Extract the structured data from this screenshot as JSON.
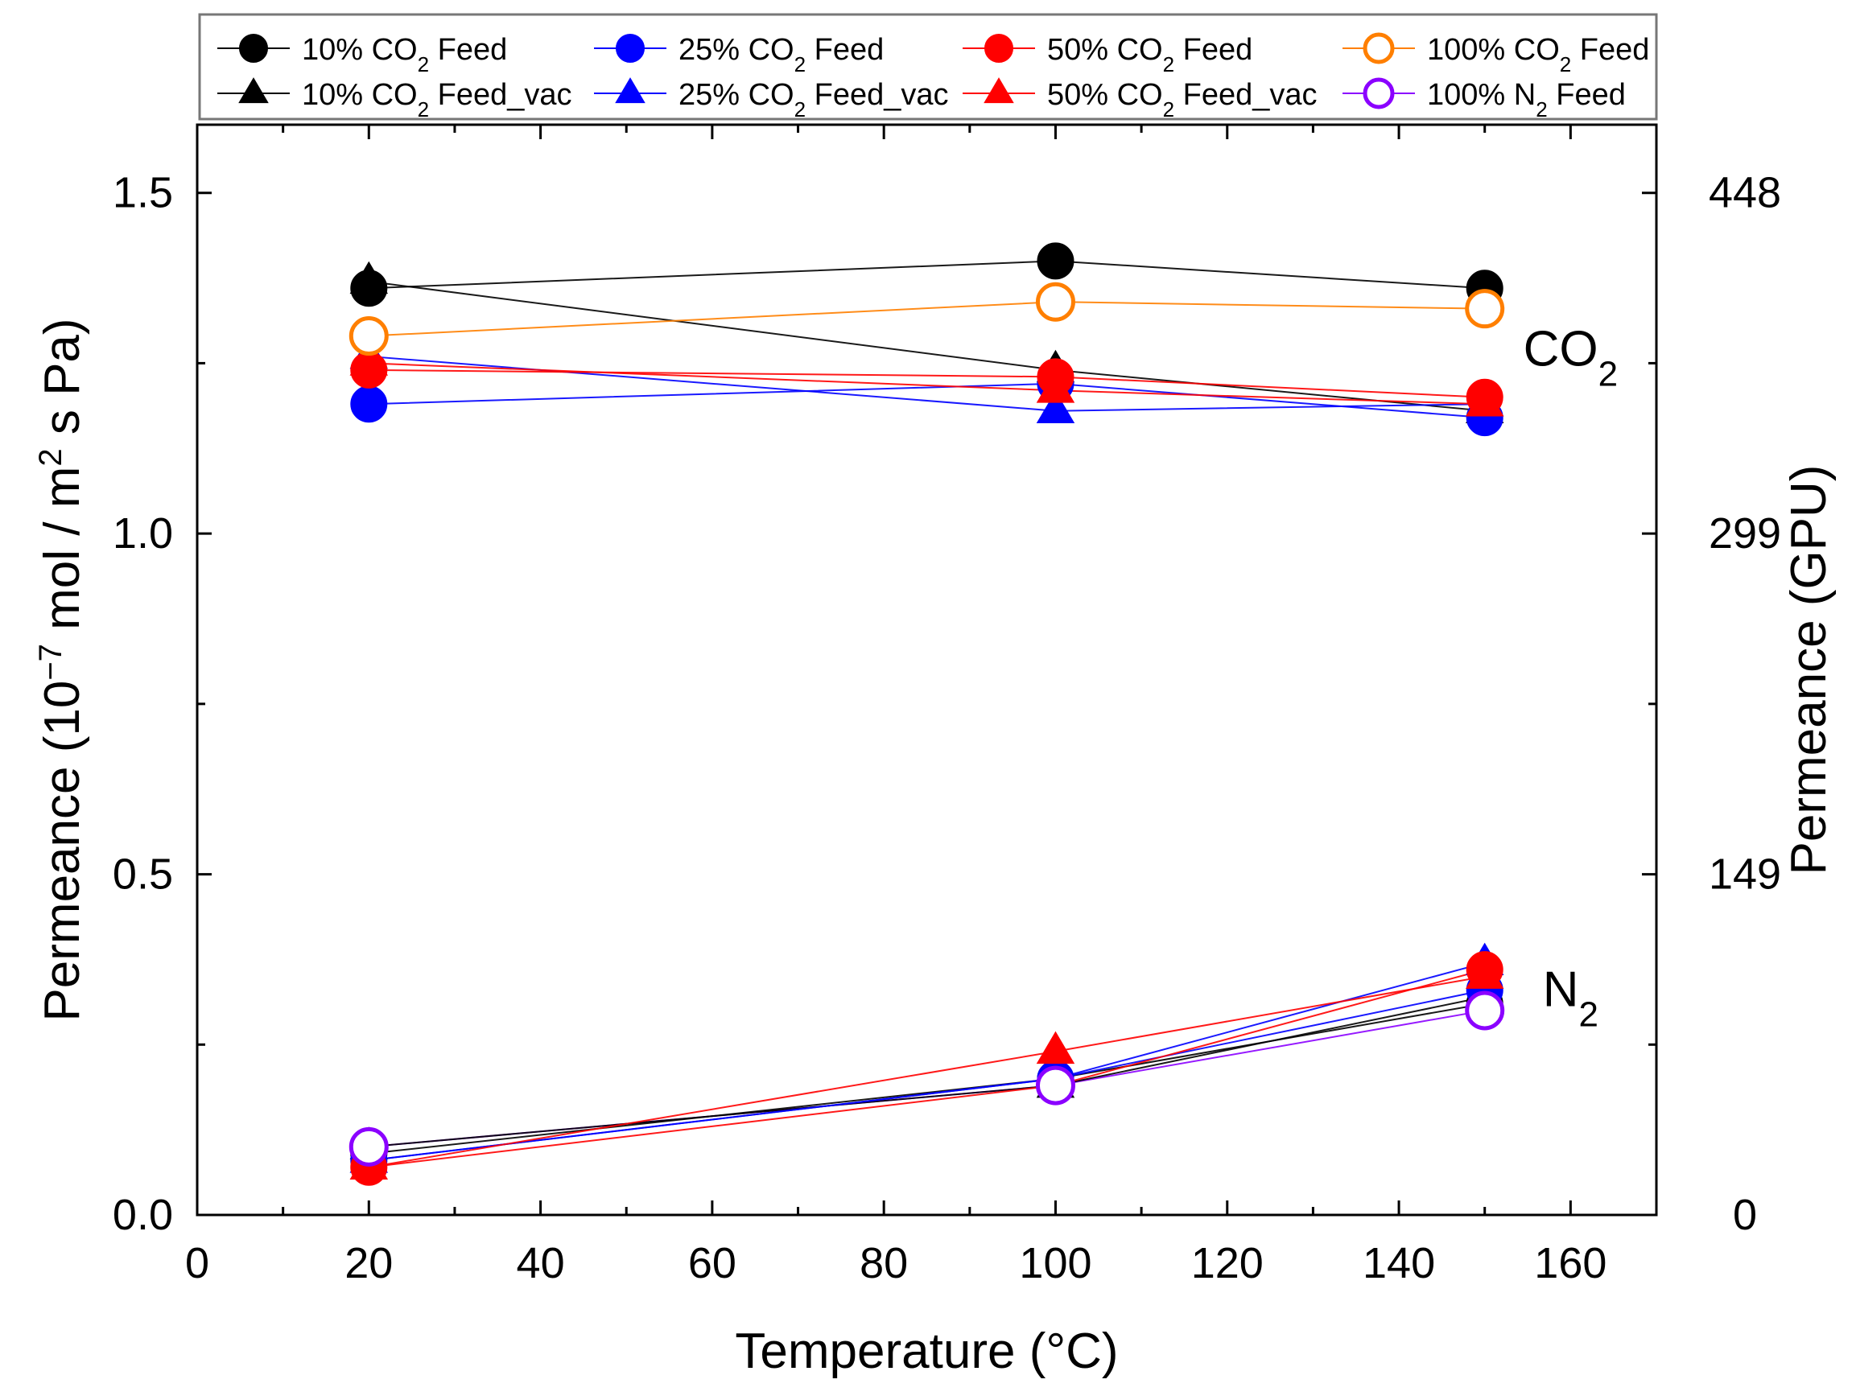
{
  "chart_data": {
    "type": "line",
    "xlabel": "Temperature (°C)",
    "ylabel": "Permeance (10^-7 mol / m^2 s Pa)",
    "ylabel_parts": {
      "pre": "Permeance (10",
      "exp1": "−7",
      "mid": " mol / m",
      "exp2": "2",
      "post": " s Pa)"
    },
    "y2label": "Permeance (GPU)",
    "xlim": [
      0,
      170
    ],
    "ylim": [
      0,
      1.6
    ],
    "x_ticks": [
      0,
      20,
      40,
      60,
      80,
      100,
      120,
      140,
      160
    ],
    "y_ticks": [
      0.0,
      0.5,
      1.0,
      1.5
    ],
    "y_tick_labels": [
      "0.0",
      "0.5",
      "1.0",
      "1.5"
    ],
    "y2_ticks": [
      0,
      149,
      299,
      448
    ],
    "grid": false,
    "legend_position": "top",
    "annotations": [
      {
        "text": "CO",
        "sub": "2",
        "x": 160,
        "y": 1.27
      },
      {
        "text": "N",
        "sub": "2",
        "x": 160,
        "y": 0.33
      }
    ],
    "x": [
      20,
      100,
      150
    ],
    "series": [
      {
        "name": "10% CO2 Feed",
        "legend": {
          "pre": "10% CO",
          "sub": "2",
          "post": " Feed"
        },
        "color": "#000000",
        "marker": "circle",
        "filled": true,
        "group": "CO2",
        "values": [
          1.36,
          1.4,
          1.36
        ]
      },
      {
        "name": "10% CO2 Feed_vac",
        "legend": {
          "pre": "10% CO",
          "sub": "2",
          "post": " Feed_vac"
        },
        "color": "#000000",
        "marker": "triangle",
        "filled": true,
        "group": "CO2",
        "values": [
          1.37,
          1.24,
          1.18
        ]
      },
      {
        "name": "25% CO2 Feed",
        "legend": {
          "pre": "25% CO",
          "sub": "2",
          "post": " Feed"
        },
        "color": "#0000ff",
        "marker": "circle",
        "filled": true,
        "group": "CO2",
        "values": [
          1.19,
          1.22,
          1.17
        ]
      },
      {
        "name": "25% CO2 Feed_vac",
        "legend": {
          "pre": "25% CO",
          "sub": "2",
          "post": " Feed_vac"
        },
        "color": "#0000ff",
        "marker": "triangle",
        "filled": true,
        "group": "CO2",
        "values": [
          1.26,
          1.18,
          1.19
        ]
      },
      {
        "name": "50% CO2 Feed",
        "legend": {
          "pre": "50% CO",
          "sub": "2",
          "post": " Feed"
        },
        "color": "#ff0000",
        "marker": "circle",
        "filled": true,
        "group": "CO2",
        "values": [
          1.24,
          1.23,
          1.2
        ]
      },
      {
        "name": "50% CO2 Feed_vac",
        "legend": {
          "pre": "50% CO",
          "sub": "2",
          "post": " Feed_vac"
        },
        "color": "#ff0000",
        "marker": "triangle",
        "filled": true,
        "group": "CO2",
        "values": [
          1.25,
          1.21,
          1.19
        ]
      },
      {
        "name": "100% CO2 Feed",
        "legend": {
          "pre": "100% CO",
          "sub": "2",
          "post": " Feed"
        },
        "color": "#ff7f00",
        "marker": "circle",
        "filled": false,
        "group": "CO2",
        "values": [
          1.29,
          1.34,
          1.33
        ]
      },
      {
        "name": "100% N2 Feed",
        "legend": {
          "pre": "100% N",
          "sub": "2",
          "post": " Feed"
        },
        "color": "#8b00ff",
        "marker": "circle",
        "filled": false,
        "group": "N2",
        "values": [
          0.1,
          0.19,
          0.3
        ]
      },
      {
        "name": "10% CO2 Feed (N2)",
        "color": "#000000",
        "marker": "circle",
        "filled": true,
        "group": "N2",
        "values": [
          0.09,
          0.2,
          0.31
        ]
      },
      {
        "name": "10% CO2 Feed_vac (N2)",
        "color": "#000000",
        "marker": "triangle",
        "filled": true,
        "group": "N2",
        "values": [
          0.1,
          0.19,
          0.32
        ]
      },
      {
        "name": "25% CO2 Feed (N2)",
        "color": "#0000ff",
        "marker": "circle",
        "filled": true,
        "group": "N2",
        "values": [
          0.08,
          0.2,
          0.33
        ]
      },
      {
        "name": "25% CO2 Feed_vac (N2)",
        "color": "#0000ff",
        "marker": "triangle",
        "filled": true,
        "group": "N2",
        "values": [
          0.08,
          0.2,
          0.37
        ]
      },
      {
        "name": "50% CO2 Feed (N2)",
        "color": "#ff0000",
        "marker": "circle",
        "filled": true,
        "group": "N2",
        "values": [
          0.07,
          0.19,
          0.36
        ]
      },
      {
        "name": "50% CO2 Feed_vac (N2)",
        "color": "#ff0000",
        "marker": "triangle",
        "filled": true,
        "group": "N2",
        "values": [
          0.07,
          0.24,
          0.35
        ]
      }
    ],
    "legend_order": [
      0,
      2,
      4,
      6,
      1,
      3,
      5,
      7
    ]
  }
}
